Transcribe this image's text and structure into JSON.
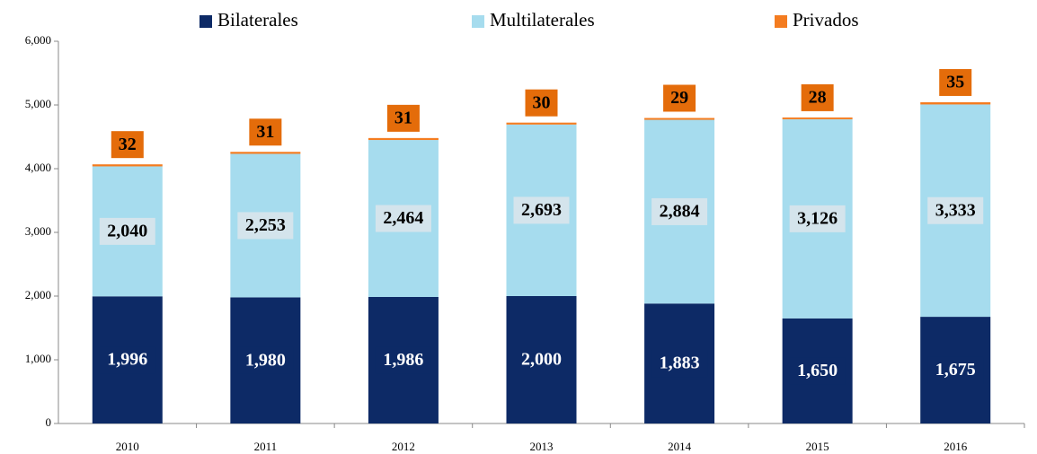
{
  "chart_data": {
    "type": "stacked_bar",
    "categories": [
      "2010",
      "2011",
      "2012",
      "2013",
      "2014",
      "2015",
      "2016"
    ],
    "series": [
      {
        "name": "Bilaterales",
        "color": "#0d2a66",
        "values": [
          1996,
          1980,
          1986,
          2000,
          1883,
          1650,
          1675
        ],
        "value_labels": [
          "1,996",
          "1,980",
          "1,986",
          "2,000",
          "1,883",
          "1,650",
          "1,675"
        ]
      },
      {
        "name": "Multilaterales",
        "color": "#a6dcee",
        "values": [
          2040,
          2253,
          2464,
          2693,
          2884,
          3126,
          3333
        ],
        "value_labels": [
          "2,040",
          "2,253",
          "2,464",
          "2,693",
          "2,884",
          "3,126",
          "3,333"
        ]
      },
      {
        "name": "Privados",
        "color": "#f47c20",
        "values": [
          32,
          31,
          31,
          30,
          29,
          28,
          35
        ]
      }
    ],
    "ylim": [
      0,
      6000
    ],
    "yticks": [
      0,
      {
        "value": 1000,
        "label": "1,000"
      },
      {
        "value": 2000,
        "label": "2,000"
      },
      {
        "value": 3000,
        "label": "3,000"
      },
      {
        "value": 4000,
        "label": "4,000"
      },
      {
        "value": 5000,
        "label": "5,000"
      },
      {
        "value": 6000,
        "label": "6,000"
      }
    ],
    "legend": "top"
  }
}
